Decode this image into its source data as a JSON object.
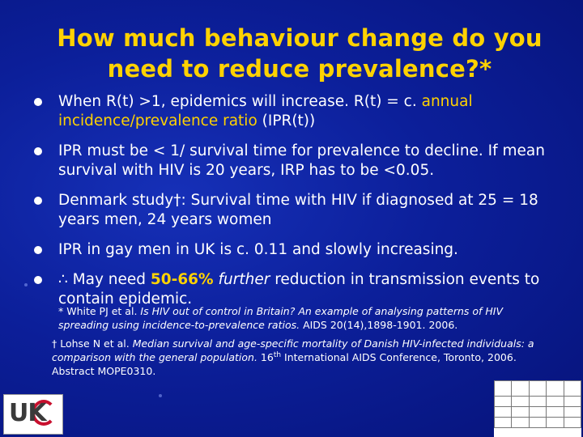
{
  "slide": {
    "title_line1": "How much behaviour change do you",
    "title_line2": "need to reduce prevalence?*"
  },
  "bullets": [
    {
      "a": "When R(t) >1, epidemics will increase. R(t) = c. ",
      "b": "annual incidence/prevalence ratio",
      "c": " (IPR(t))"
    },
    {
      "text": "IPR must be < 1/ survival time for prevalence to decline. If mean survival with HIV is 20 years, IRP has to be <0.05."
    },
    {
      "text": "Denmark study†: Survival time with HIV if diagnosed at 25 = 18 years men, 24 years women"
    },
    {
      "text": "IPR in gay men in UK is c. 0.11 and slowly increasing."
    },
    {
      "a": "∴ May need ",
      "b": "50-66%",
      "c": "further",
      "d": " reduction in transmission events to contain epidemic."
    }
  ],
  "references": {
    "r1_a": "* White PJ et al. ",
    "r1_b": "Is HIV out of control in Britain? An example of analysing patterns of HIV spreading using incidence-to-prevalence ratios.",
    "r1_c": " AIDS 20(14),1898-1901. 2006.",
    "r2_a": "† Lohse N et al. ",
    "r2_b": "Median survival and age-specific mortality of Danish HIV-infected individuals: a comparison with the general population.",
    "r2_c": " 16",
    "r2_sup": "th",
    "r2_d": " International AIDS Conference, Toronto, 2006. Abstract MOPE0310."
  },
  "logo": {
    "text": "UK"
  },
  "colors": {
    "title": "#ffd200",
    "background": "#0c1f9a",
    "logo_accent": "#c8102e"
  }
}
